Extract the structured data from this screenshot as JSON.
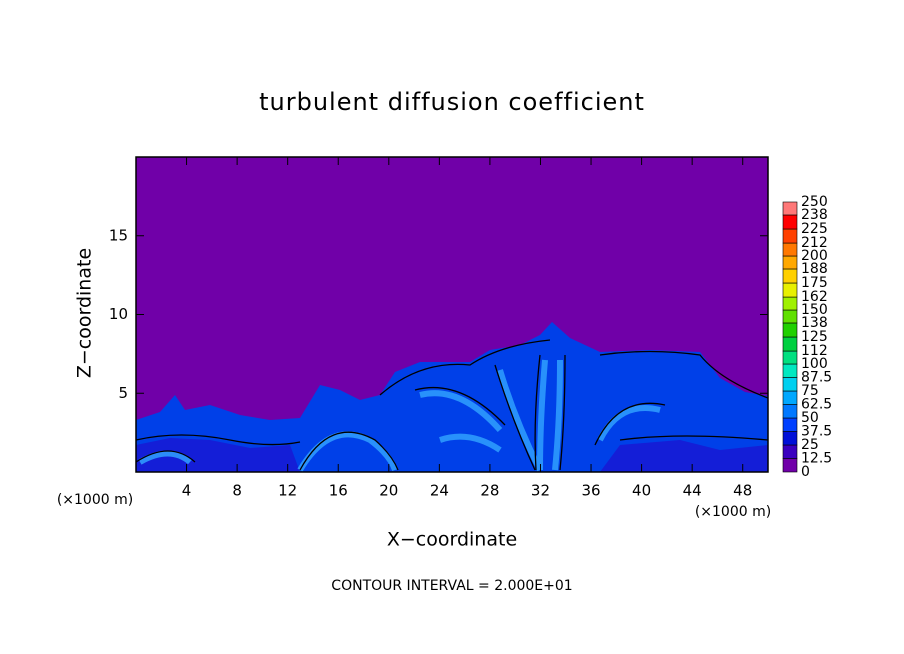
{
  "chart_data": {
    "type": "contour",
    "title": "turbulent diffusion coefficient",
    "x_label": "X−coordinate",
    "y_label": "Z−coordinate",
    "x_units": "(×1000 m)",
    "annotation": "CONTOUR INTERVAL = 2.000E+01",
    "xlim": [
      0,
      50
    ],
    "xticks": [
      4,
      8,
      12,
      16,
      20,
      24,
      28,
      32,
      36,
      40,
      44,
      48
    ],
    "ylim": [
      0,
      20
    ],
    "yticks": [
      5,
      10,
      15
    ],
    "colorbar": {
      "levels": [
        0,
        12.5,
        25,
        37.5,
        50,
        62.5,
        75,
        87.5,
        100,
        112,
        125,
        138,
        150,
        162,
        175,
        188,
        200,
        212,
        225,
        238,
        250
      ],
      "colors": [
        "#7000a8",
        "#3a00c0",
        "#0010d8",
        "#0040ff",
        "#0078ff",
        "#00a8ff",
        "#00d0f0",
        "#00e8c0",
        "#00e080",
        "#00d040",
        "#20d000",
        "#60e000",
        "#a0f000",
        "#e8f000",
        "#ffd000",
        "#ffa800",
        "#ff7800",
        "#ff4000",
        "#ff0000",
        "#ff7878"
      ]
    }
  }
}
